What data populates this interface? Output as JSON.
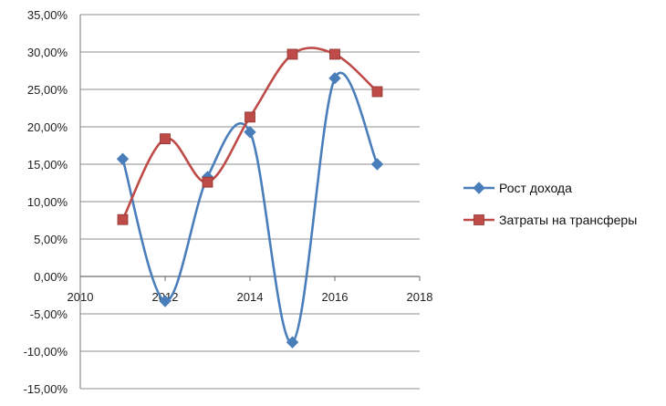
{
  "chart_data": {
    "type": "line",
    "title": "",
    "xlabel": "",
    "ylabel": "",
    "xlim": [
      2010,
      2018
    ],
    "ylim": [
      -0.15,
      0.35
    ],
    "x_ticks": [
      2010,
      2012,
      2014,
      2016,
      2018
    ],
    "x_tick_labels": [
      "2010",
      "2012",
      "2014",
      "2016",
      "2018"
    ],
    "y_ticks": [
      0.35,
      0.3,
      0.25,
      0.2,
      0.15,
      0.1,
      0.05,
      0.0,
      -0.05,
      -0.1,
      -0.15
    ],
    "y_tick_labels": [
      "35,00%",
      "30,00%",
      "25,00%",
      "20,00%",
      "15,00%",
      "10,00%",
      "5,00%",
      "0,00%",
      "-5,00%",
      "-10,00%",
      "-15,00%"
    ],
    "grid": "horizontal",
    "smooth": true,
    "legend_position": "right",
    "series": [
      {
        "name": "Рост дохода",
        "color": "#4a7ebb",
        "marker": "diamond",
        "x": [
          2011,
          2012,
          2013,
          2014,
          2015,
          2016,
          2017
        ],
        "values": [
          0.157,
          -0.033,
          0.133,
          0.193,
          -0.088,
          0.265,
          0.15
        ]
      },
      {
        "name": "Затраты на трансферы",
        "color": "#be4b48",
        "marker": "square",
        "x": [
          2011,
          2012,
          2013,
          2014,
          2015,
          2016,
          2017
        ],
        "values": [
          0.076,
          0.184,
          0.126,
          0.213,
          0.297,
          0.297,
          0.247
        ]
      }
    ]
  }
}
